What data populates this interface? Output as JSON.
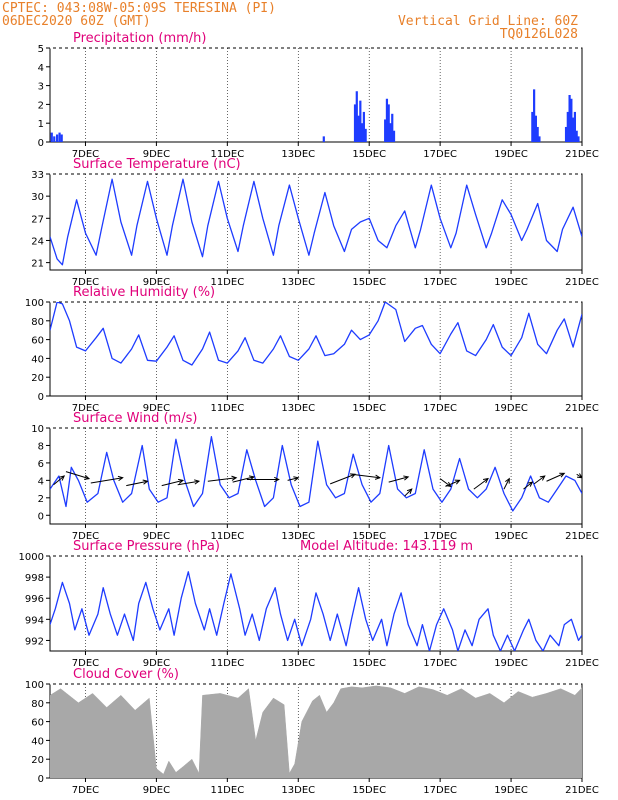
{
  "header": {
    "line1": "CPTEC:    043:08W-05:09S    TERESINA (PI)",
    "line2": "06DEC2020  60Z (GMT)",
    "grid_note": "Vertical Grid Line: 60Z",
    "code": "TQ0126L028"
  },
  "colors": {
    "header": "#e8802a",
    "panel_title": "#e0007a",
    "series": "#1e3cff",
    "cloud": "#a8a8a8",
    "grid": "#000000",
    "axis_text": "#000000"
  },
  "x_axis": {
    "ticks": [
      "7DEC",
      "9DEC",
      "11DEC",
      "13DEC",
      "15DEC",
      "17DEC",
      "19DEC",
      "21DEC"
    ],
    "tick_days": [
      7,
      9,
      11,
      13,
      15,
      17,
      19,
      21
    ],
    "range_days": [
      6.0,
      21.0
    ]
  },
  "chart_data": [
    {
      "type": "bar",
      "title": "Precipitation (mm/h)",
      "ylim": [
        0,
        5
      ],
      "yticks": [
        "0",
        "1",
        "2",
        "3",
        "4",
        "5"
      ],
      "x": [
        6.05,
        6.12,
        6.2,
        6.27,
        6.33,
        13.72,
        14.6,
        14.65,
        14.7,
        14.75,
        14.8,
        14.85,
        14.9,
        15.45,
        15.5,
        15.55,
        15.6,
        15.65,
        15.7,
        19.6,
        19.65,
        19.7,
        19.75,
        19.8,
        20.55,
        20.6,
        20.65,
        20.7,
        20.75,
        20.8,
        20.85,
        20.9
      ],
      "values": [
        0.5,
        0.3,
        0.4,
        0.5,
        0.4,
        0.3,
        2.0,
        2.7,
        1.4,
        2.2,
        1.0,
        1.6,
        0.7,
        1.2,
        2.3,
        2.0,
        1.0,
        1.5,
        0.6,
        1.6,
        2.8,
        1.4,
        0.8,
        0.3,
        0.8,
        1.6,
        2.5,
        2.3,
        1.3,
        1.6,
        0.6,
        0.3
      ]
    },
    {
      "type": "line",
      "title": "Surface Temperature (nC)",
      "ylim": [
        20,
        33
      ],
      "yticks": [
        "21",
        "24",
        "27",
        "30",
        "33"
      ],
      "series": [
        {
          "x": [
            6.0,
            6.2,
            6.35,
            6.5,
            6.75,
            7.0,
            7.3,
            7.45,
            7.75,
            8.0,
            8.3,
            8.45,
            8.75,
            9.0,
            9.3,
            9.45,
            9.75,
            10.0,
            10.3,
            10.45,
            10.75,
            11.0,
            11.3,
            11.45,
            11.75,
            12.0,
            12.3,
            12.45,
            12.75,
            13.0,
            13.3,
            13.45,
            13.75,
            14.0,
            14.3,
            14.5,
            14.75,
            15.0,
            15.25,
            15.5,
            15.75,
            16.0,
            16.3,
            16.45,
            16.75,
            17.0,
            17.3,
            17.45,
            17.75,
            18.0,
            18.3,
            18.45,
            18.75,
            19.0,
            19.3,
            19.45,
            19.75,
            20.0,
            20.3,
            20.45,
            20.75,
            21.0
          ],
          "y": [
            24.5,
            21.5,
            20.7,
            24.5,
            29.5,
            25.0,
            22.0,
            25.5,
            32.3,
            26.5,
            22.0,
            26.0,
            32.0,
            27.0,
            22.0,
            26.0,
            32.3,
            26.5,
            21.8,
            26.0,
            32.0,
            27.0,
            22.5,
            26.0,
            32.0,
            27.0,
            22.0,
            26.0,
            31.5,
            27.0,
            22.0,
            25.0,
            30.5,
            26.0,
            22.5,
            25.5,
            26.5,
            27.0,
            24.0,
            23.0,
            26.0,
            28.0,
            23.0,
            25.5,
            31.5,
            27.0,
            23.0,
            25.0,
            31.5,
            27.5,
            23.0,
            25.0,
            29.5,
            27.5,
            24.0,
            25.5,
            29.0,
            24.0,
            22.5,
            25.5,
            28.5,
            24.5
          ]
        }
      ]
    },
    {
      "type": "line",
      "title": "Relative Humidity (%)",
      "ylim": [
        0,
        100
      ],
      "yticks": [
        "0",
        "20",
        "40",
        "60",
        "80",
        "100"
      ],
      "series": [
        {
          "x": [
            6.0,
            6.2,
            6.35,
            6.55,
            6.75,
            7.0,
            7.3,
            7.5,
            7.75,
            8.0,
            8.3,
            8.5,
            8.75,
            9.0,
            9.3,
            9.5,
            9.75,
            10.0,
            10.3,
            10.5,
            10.75,
            11.0,
            11.3,
            11.5,
            11.75,
            12.0,
            12.3,
            12.5,
            12.75,
            13.0,
            13.3,
            13.5,
            13.75,
            14.0,
            14.3,
            14.5,
            14.75,
            15.0,
            15.25,
            15.45,
            15.75,
            16.0,
            16.3,
            16.5,
            16.75,
            17.0,
            17.3,
            17.5,
            17.75,
            18.0,
            18.3,
            18.5,
            18.75,
            19.0,
            19.3,
            19.5,
            19.75,
            20.0,
            20.3,
            20.5,
            20.75,
            21.0
          ],
          "y": [
            70,
            100,
            98,
            80,
            52,
            48,
            62,
            72,
            40,
            35,
            50,
            65,
            38,
            37,
            52,
            64,
            38,
            33,
            50,
            68,
            38,
            35,
            48,
            62,
            38,
            35,
            50,
            64,
            42,
            38,
            50,
            64,
            43,
            45,
            55,
            70,
            60,
            65,
            80,
            100,
            92,
            58,
            72,
            75,
            55,
            45,
            66,
            78,
            48,
            43,
            60,
            76,
            52,
            43,
            62,
            88,
            55,
            45,
            70,
            82,
            52,
            87
          ]
        }
      ]
    },
    {
      "type": "line",
      "title": "Surface Wind (m/s)",
      "ylim": [
        -1,
        10
      ],
      "yticks": [
        "0",
        "2",
        "4",
        "6",
        "8",
        "10"
      ],
      "series": [
        {
          "x": [
            6.0,
            6.25,
            6.45,
            6.6,
            6.8,
            7.05,
            7.35,
            7.6,
            7.8,
            8.05,
            8.3,
            8.6,
            8.8,
            9.05,
            9.3,
            9.55,
            9.8,
            10.05,
            10.3,
            10.55,
            10.8,
            11.05,
            11.3,
            11.55,
            11.8,
            12.05,
            12.3,
            12.55,
            12.8,
            13.05,
            13.3,
            13.55,
            13.8,
            14.05,
            14.3,
            14.55,
            14.8,
            15.05,
            15.3,
            15.55,
            15.8,
            16.05,
            16.3,
            16.55,
            16.8,
            17.05,
            17.3,
            17.55,
            17.8,
            18.05,
            18.3,
            18.55,
            18.8,
            19.05,
            19.3,
            19.55,
            19.8,
            20.05,
            20.3,
            20.55,
            20.8,
            21.0
          ],
          "y": [
            3.0,
            4.5,
            1.0,
            5.5,
            4.0,
            1.5,
            2.5,
            7.2,
            4.0,
            1.5,
            2.5,
            8.0,
            3.0,
            1.5,
            2.0,
            8.7,
            4.0,
            1.0,
            2.5,
            9.0,
            3.5,
            2.0,
            2.5,
            7.5,
            4.0,
            1.0,
            2.0,
            8.0,
            3.5,
            1.0,
            1.5,
            8.5,
            3.5,
            2.0,
            2.5,
            7.0,
            3.5,
            1.5,
            2.5,
            8.0,
            3.0,
            2.0,
            2.5,
            7.5,
            3.0,
            1.5,
            3.0,
            6.5,
            3.0,
            2.0,
            3.0,
            5.5,
            2.5,
            0.5,
            2.0,
            4.5,
            2.0,
            1.5,
            3.0,
            4.5,
            4.0,
            2.5
          ]
        }
      ],
      "wind_arrows": [
        {
          "x": 6.1,
          "y": 3.5,
          "dx": 0.3,
          "dy": 1.0
        },
        {
          "x": 6.45,
          "y": 5.0,
          "dx": 0.65,
          "dy": -0.8
        },
        {
          "x": 7.15,
          "y": 3.7,
          "dx": 0.9,
          "dy": 0.6
        },
        {
          "x": 8.15,
          "y": 3.4,
          "dx": 0.6,
          "dy": 0.5
        },
        {
          "x": 9.15,
          "y": 3.4,
          "dx": 0.6,
          "dy": 0.6
        },
        {
          "x": 9.6,
          "y": 3.5,
          "dx": 0.6,
          "dy": 0.4
        },
        {
          "x": 10.45,
          "y": 3.9,
          "dx": 0.8,
          "dy": 0.4
        },
        {
          "x": 11.15,
          "y": 3.8,
          "dx": 0.6,
          "dy": 0.6
        },
        {
          "x": 11.55,
          "y": 4.1,
          "dx": 0.9,
          "dy": 0.0
        },
        {
          "x": 12.7,
          "y": 4.0,
          "dx": 0.3,
          "dy": 0.3
        },
        {
          "x": 13.9,
          "y": 3.6,
          "dx": 0.7,
          "dy": 1.1
        },
        {
          "x": 14.5,
          "y": 4.7,
          "dx": 0.8,
          "dy": -0.4
        },
        {
          "x": 15.55,
          "y": 3.8,
          "dx": 0.55,
          "dy": 0.6
        },
        {
          "x": 16.0,
          "y": 2.2,
          "dx": 0.2,
          "dy": 0.8
        },
        {
          "x": 17.0,
          "y": 4.2,
          "dx": 0.3,
          "dy": -0.9
        },
        {
          "x": 17.15,
          "y": 3.3,
          "dx": 0.4,
          "dy": 0.7
        },
        {
          "x": 17.95,
          "y": 3.0,
          "dx": 0.4,
          "dy": 1.2
        },
        {
          "x": 18.8,
          "y": 3.0,
          "dx": 0.15,
          "dy": 1.2
        },
        {
          "x": 19.35,
          "y": 3.0,
          "dx": 0.25,
          "dy": 0.8
        },
        {
          "x": 19.65,
          "y": 3.6,
          "dx": 0.3,
          "dy": 0.9
        },
        {
          "x": 20.0,
          "y": 3.9,
          "dx": 0.5,
          "dy": 0.9
        },
        {
          "x": 20.85,
          "y": 4.7,
          "dx": 0.15,
          "dy": -0.4
        }
      ]
    },
    {
      "type": "line",
      "title": "Surface Pressure (hPa)",
      "subtitle": "Model Altitude: 143.119 m",
      "ylim": [
        991,
        1000
      ],
      "yticks": [
        "992",
        "994",
        "996",
        "998",
        "1000"
      ],
      "series": [
        {
          "x": [
            6.0,
            6.15,
            6.35,
            6.55,
            6.7,
            6.9,
            7.1,
            7.35,
            7.5,
            7.7,
            7.9,
            8.1,
            8.35,
            8.5,
            8.7,
            8.9,
            9.1,
            9.35,
            9.5,
            9.7,
            9.9,
            10.1,
            10.35,
            10.5,
            10.7,
            10.9,
            11.1,
            11.35,
            11.5,
            11.7,
            11.9,
            12.1,
            12.35,
            12.5,
            12.7,
            12.9,
            13.1,
            13.35,
            13.5,
            13.7,
            13.9,
            14.1,
            14.35,
            14.5,
            14.7,
            14.9,
            15.1,
            15.35,
            15.5,
            15.7,
            15.9,
            16.1,
            16.35,
            16.5,
            16.7,
            16.9,
            17.1,
            17.35,
            17.5,
            17.7,
            17.9,
            18.1,
            18.35,
            18.5,
            18.7,
            18.9,
            19.1,
            19.35,
            19.5,
            19.7,
            19.9,
            20.1,
            20.35,
            20.5,
            20.7,
            20.9,
            21.0
          ],
          "y": [
            993.5,
            995.0,
            997.5,
            995.5,
            993.0,
            995.0,
            992.5,
            994.5,
            997.0,
            994.5,
            992.5,
            994.5,
            992.0,
            995.5,
            997.5,
            995.0,
            993.0,
            995.0,
            992.5,
            996.0,
            998.5,
            995.5,
            993.0,
            995.0,
            992.5,
            995.5,
            998.3,
            995.0,
            992.5,
            994.5,
            992.0,
            995.0,
            997.0,
            994.5,
            992.0,
            994.0,
            991.5,
            994.0,
            996.5,
            994.5,
            992.0,
            994.5,
            991.5,
            994.0,
            997.0,
            994.0,
            992.0,
            994.0,
            991.5,
            994.5,
            996.5,
            993.5,
            991.5,
            993.5,
            991.0,
            993.5,
            995.0,
            993.0,
            991.0,
            993.0,
            991.5,
            994.0,
            995.0,
            992.5,
            991.0,
            992.5,
            991.0,
            993.0,
            994.0,
            992.0,
            991.0,
            992.5,
            991.5,
            993.5,
            994.0,
            992.0,
            992.5
          ]
        }
      ]
    },
    {
      "type": "area",
      "title": "Cloud Cover (%)",
      "ylim": [
        0,
        100
      ],
      "yticks": [
        "0",
        "20",
        "40",
        "60",
        "80",
        "100"
      ],
      "series": [
        {
          "x": [
            6.0,
            6.3,
            6.8,
            7.2,
            7.6,
            8.0,
            8.4,
            8.8,
            9.0,
            9.2,
            9.35,
            9.55,
            9.75,
            10.0,
            10.2,
            10.3,
            10.8,
            11.3,
            11.6,
            11.8,
            12.0,
            12.3,
            12.6,
            12.75,
            12.9,
            13.1,
            13.4,
            13.6,
            13.8,
            14.0,
            14.2,
            14.5,
            14.8,
            15.2,
            15.6,
            16.0,
            16.4,
            16.8,
            17.2,
            17.6,
            18.0,
            18.4,
            18.8,
            19.2,
            19.6,
            20.0,
            20.4,
            20.8,
            21.0
          ],
          "y": [
            88,
            95,
            80,
            90,
            75,
            88,
            72,
            85,
            10,
            4,
            18,
            6,
            12,
            20,
            5,
            88,
            90,
            85,
            95,
            40,
            70,
            85,
            78,
            5,
            15,
            60,
            82,
            88,
            70,
            80,
            95,
            97,
            96,
            98,
            96,
            90,
            97,
            94,
            88,
            95,
            85,
            90,
            80,
            92,
            86,
            90,
            95,
            88,
            96
          ]
        }
      ]
    }
  ]
}
